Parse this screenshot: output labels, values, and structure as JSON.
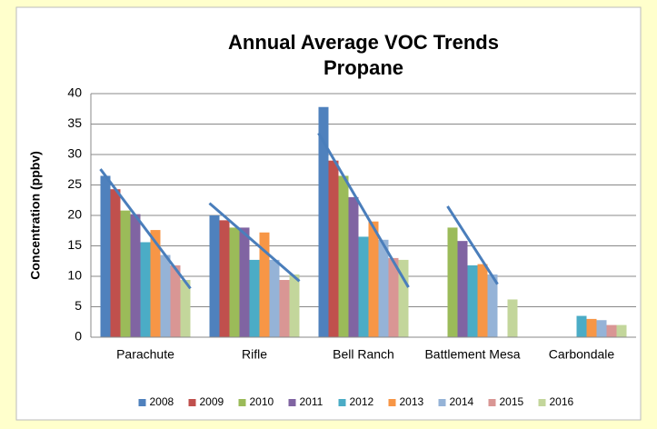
{
  "chart_data": {
    "type": "bar",
    "title": "Annual Average VOC Trends",
    "subtitle": "Propane",
    "y_label": "Concentration (ppbv)",
    "categories": [
      "Parachute",
      "Rifle",
      "Bell Ranch",
      "Battlement Mesa",
      "Carbondale"
    ],
    "series": [
      {
        "name": "2008",
        "color": "#4f81bd",
        "values": [
          26.5,
          20.0,
          37.8,
          null,
          null
        ]
      },
      {
        "name": "2009",
        "color": "#c0504d",
        "values": [
          24.3,
          19.2,
          29.0,
          null,
          null
        ]
      },
      {
        "name": "2010",
        "color": "#9bbb59",
        "values": [
          20.8,
          18.0,
          26.5,
          18.0,
          null
        ]
      },
      {
        "name": "2011",
        "color": "#8064a2",
        "values": [
          20.2,
          18.0,
          23.0,
          15.8,
          null
        ]
      },
      {
        "name": "2012",
        "color": "#4bacc6",
        "values": [
          15.6,
          12.7,
          16.5,
          11.8,
          3.5
        ]
      },
      {
        "name": "2013",
        "color": "#f79646",
        "values": [
          17.6,
          17.2,
          19.0,
          12.0,
          3.0
        ]
      },
      {
        "name": "2014",
        "color": "#95b3d7",
        "values": [
          13.5,
          12.7,
          16.0,
          10.3,
          2.8
        ]
      },
      {
        "name": "2015",
        "color": "#d99694",
        "values": [
          11.8,
          9.4,
          13.0,
          null,
          2.0
        ]
      },
      {
        "name": "2016",
        "color": "#c3d69b",
        "values": [
          9.4,
          10.3,
          12.7,
          6.2,
          2.0
        ]
      }
    ],
    "trendlines": {
      "color": "#4a7ebb",
      "lines": [
        {
          "from": 0,
          "to": 8,
          "values": [
            27.6,
            8.0
          ]
        },
        {
          "from": 0,
          "to": 8,
          "values": [
            22.0,
            9.2
          ]
        },
        {
          "from": 0,
          "to": 8,
          "values": [
            33.5,
            8.2
          ]
        },
        {
          "from": 2,
          "to": 6,
          "values": [
            21.5,
            8.7
          ]
        }
      ]
    },
    "ylim": [
      0,
      40
    ],
    "yticks": [
      0,
      5,
      10,
      15,
      20,
      25,
      30,
      35,
      40
    ],
    "grid": true,
    "legend": "bottom"
  }
}
